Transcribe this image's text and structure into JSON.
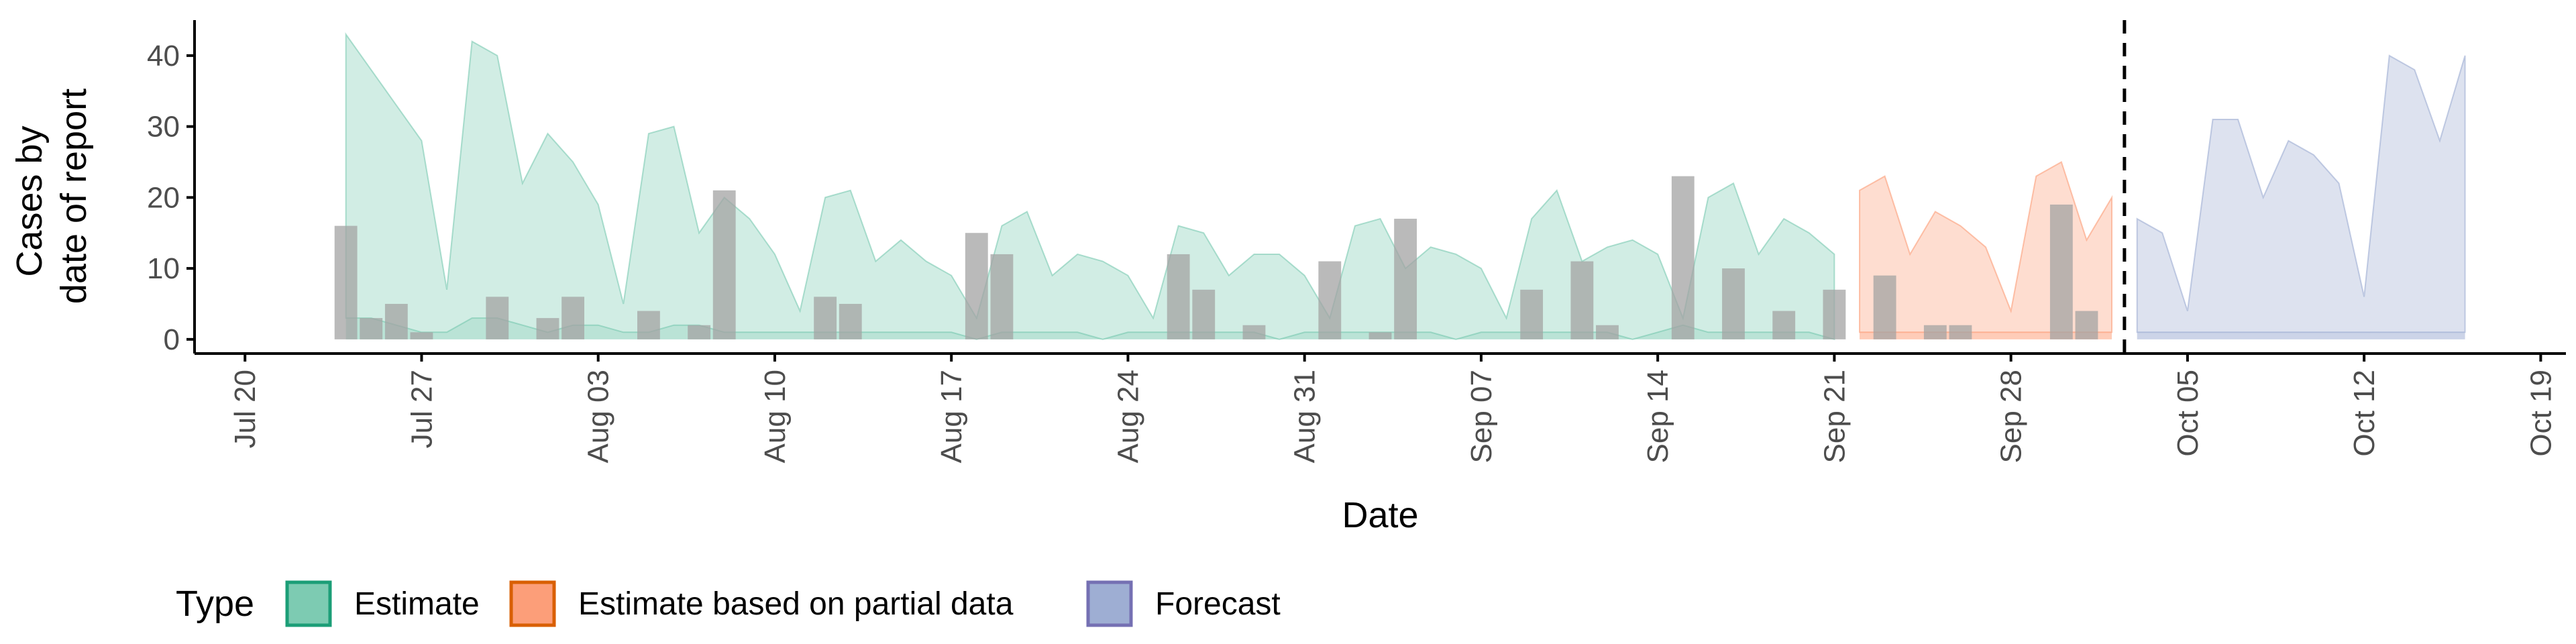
{
  "chart_data": {
    "type": "area",
    "xlabel": "Date",
    "ylabel_lines": [
      "Cases by",
      "date of report"
    ],
    "ylim": [
      -2,
      45
    ],
    "yticks": [
      0,
      10,
      20,
      30,
      40
    ],
    "xlim": [
      "2020-07-18",
      "2020-10-20"
    ],
    "xtick_dates": [
      "2020-07-20",
      "2020-07-27",
      "2020-08-03",
      "2020-08-10",
      "2020-08-17",
      "2020-08-24",
      "2020-08-31",
      "2020-09-07",
      "2020-09-14",
      "2020-09-21",
      "2020-09-28",
      "2020-10-05",
      "2020-10-12",
      "2020-10-19"
    ],
    "xtick_labels": [
      "Jul 20",
      "Jul 27",
      "Aug 03",
      "Aug 10",
      "Aug 17",
      "Aug 24",
      "Aug 31",
      "Sep 07",
      "Sep 14",
      "Sep 21",
      "Sep 28",
      "Oct 05",
      "Oct 12",
      "Oct 19"
    ],
    "forecast_date": "2020-10-02",
    "grid": false,
    "legend": {
      "title": "Type",
      "position": "bottom",
      "entries": [
        {
          "label": "Estimate",
          "fill": "#66c2a5",
          "stroke": "#1b9e77"
        },
        {
          "label": "Estimate based on partial data",
          "fill": "#fc8d62",
          "stroke": "#d95f02"
        },
        {
          "label": "Forecast",
          "fill": "#8da0cb",
          "stroke": "#7570b3"
        }
      ]
    },
    "series": [
      {
        "name": "Estimate",
        "color": "#66c2a5",
        "start": "2020-07-24",
        "upper": [
          43,
          38,
          33,
          28,
          7,
          42,
          40,
          22,
          29,
          25,
          19,
          5,
          29,
          30,
          15,
          20,
          17,
          12,
          4,
          20,
          21,
          11,
          14,
          11,
          9,
          3,
          16,
          18,
          9,
          12,
          11,
          9,
          3,
          16,
          15,
          9,
          12,
          12,
          9,
          3,
          16,
          17,
          10,
          13,
          12,
          10,
          3,
          17,
          21,
          11,
          13,
          14,
          12,
          3,
          20,
          22,
          12,
          17,
          15,
          12
        ],
        "lower": [
          3,
          3,
          2,
          1,
          1,
          3,
          3,
          2,
          1,
          2,
          2,
          1,
          1,
          2,
          2,
          1,
          1,
          1,
          1,
          1,
          1,
          1,
          1,
          1,
          1,
          0,
          1,
          1,
          1,
          1,
          0,
          1,
          1,
          1,
          1,
          1,
          1,
          0,
          1,
          1,
          1,
          1,
          1,
          1,
          0,
          1,
          1,
          1,
          1,
          1,
          1,
          0,
          1,
          2,
          1,
          1,
          1,
          1,
          1,
          0
        ]
      },
      {
        "name": "Estimate based on partial data",
        "color": "#fc8d62",
        "start": "2020-09-22",
        "upper": [
          21,
          23,
          12,
          18,
          16,
          13,
          4,
          23,
          25,
          14,
          20
        ],
        "lower": [
          1,
          1,
          1,
          1,
          1,
          1,
          1,
          1,
          1,
          1,
          1
        ]
      },
      {
        "name": "Forecast",
        "color": "#8da0cb",
        "start": "2020-10-03",
        "upper": [
          17,
          15,
          4,
          31,
          31,
          20,
          28,
          26,
          22,
          6,
          40,
          38,
          28,
          40
        ],
        "lower": [
          1,
          1,
          1,
          1,
          1,
          1,
          1,
          1,
          1,
          1,
          1,
          1,
          1,
          1
        ]
      }
    ],
    "reported_cases": {
      "color": "#a3a3a3",
      "points": [
        {
          "date": "2020-07-24",
          "value": 16
        },
        {
          "date": "2020-07-25",
          "value": 3
        },
        {
          "date": "2020-07-26",
          "value": 5
        },
        {
          "date": "2020-07-27",
          "value": 1
        },
        {
          "date": "2020-07-30",
          "value": 6
        },
        {
          "date": "2020-08-01",
          "value": 3
        },
        {
          "date": "2020-08-02",
          "value": 6
        },
        {
          "date": "2020-08-05",
          "value": 4
        },
        {
          "date": "2020-08-07",
          "value": 2
        },
        {
          "date": "2020-08-08",
          "value": 21
        },
        {
          "date": "2020-08-12",
          "value": 6
        },
        {
          "date": "2020-08-13",
          "value": 5
        },
        {
          "date": "2020-08-18",
          "value": 15
        },
        {
          "date": "2020-08-19",
          "value": 12
        },
        {
          "date": "2020-08-26",
          "value": 12
        },
        {
          "date": "2020-08-27",
          "value": 7
        },
        {
          "date": "2020-08-29",
          "value": 2
        },
        {
          "date": "2020-09-01",
          "value": 11
        },
        {
          "date": "2020-09-03",
          "value": 1
        },
        {
          "date": "2020-09-04",
          "value": 17
        },
        {
          "date": "2020-09-09",
          "value": 7
        },
        {
          "date": "2020-09-11",
          "value": 11
        },
        {
          "date": "2020-09-12",
          "value": 2
        },
        {
          "date": "2020-09-15",
          "value": 23
        },
        {
          "date": "2020-09-17",
          "value": 10
        },
        {
          "date": "2020-09-19",
          "value": 4
        },
        {
          "date": "2020-09-21",
          "value": 7
        },
        {
          "date": "2020-09-23",
          "value": 9
        },
        {
          "date": "2020-09-25",
          "value": 2
        },
        {
          "date": "2020-09-26",
          "value": 2
        },
        {
          "date": "2020-09-30",
          "value": 19
        },
        {
          "date": "2020-10-01",
          "value": 4
        }
      ]
    }
  }
}
